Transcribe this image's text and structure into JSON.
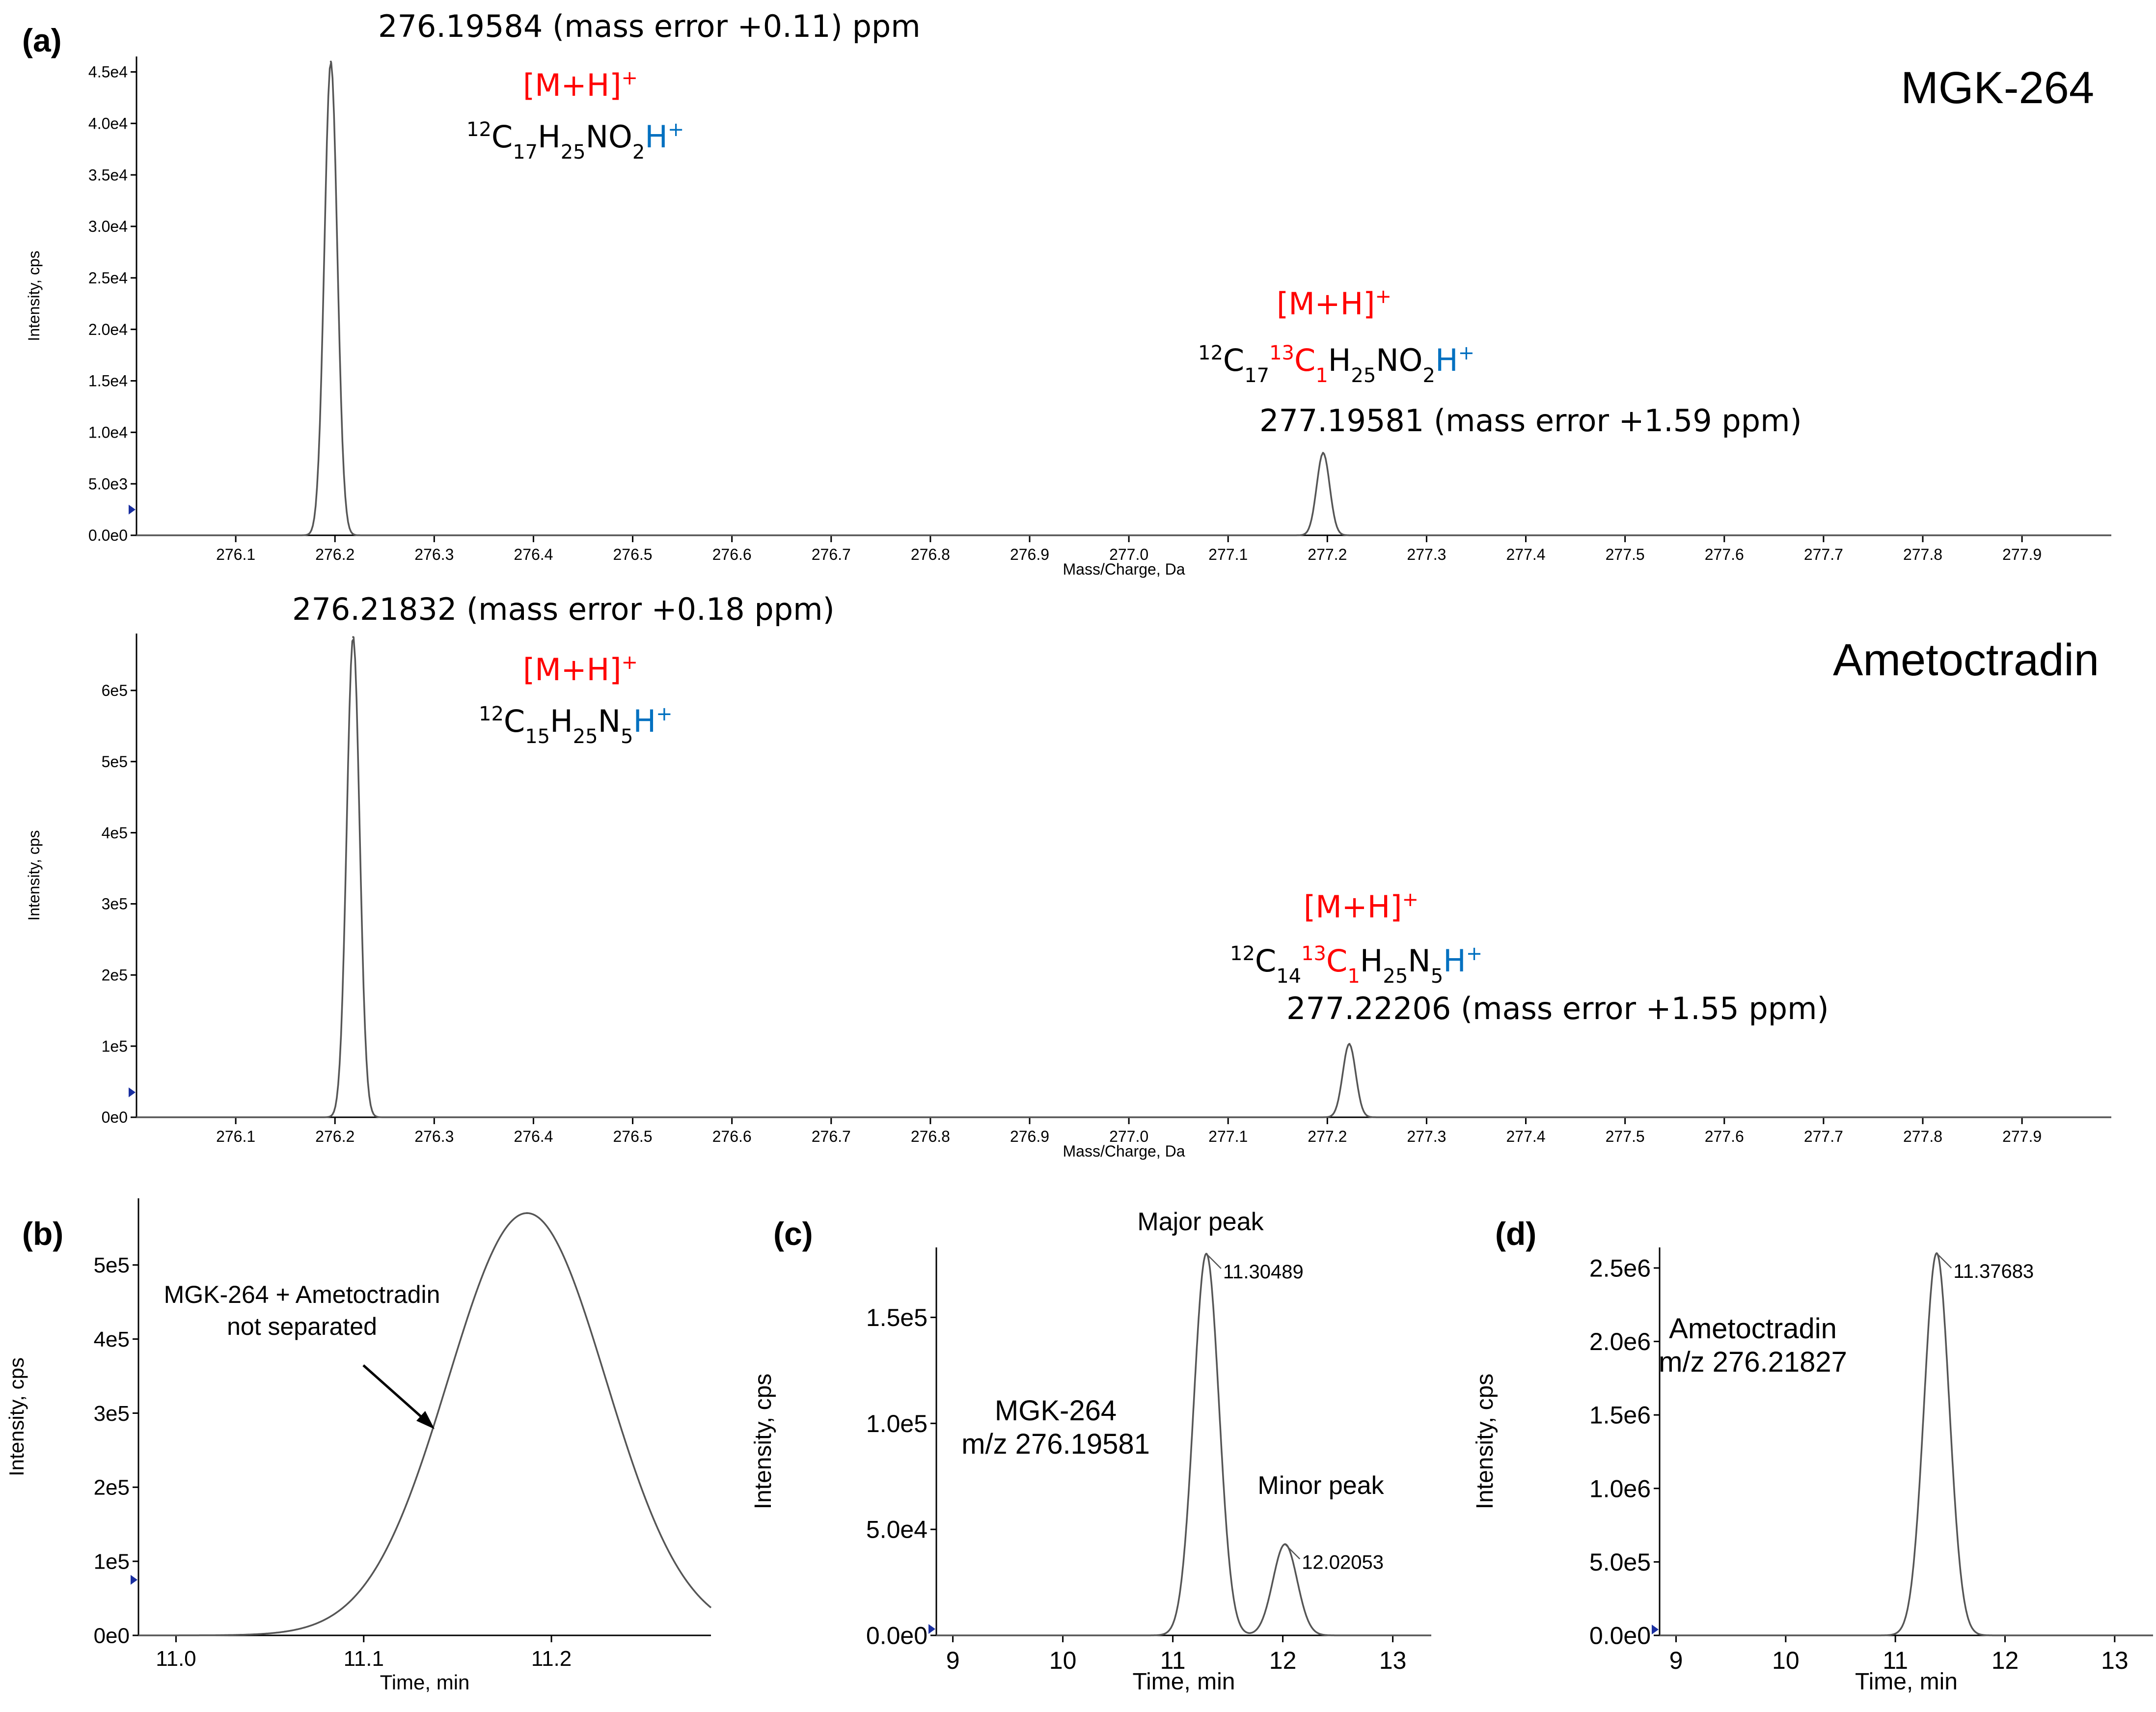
{
  "colors": {
    "line": "#555555",
    "axis": "#000000",
    "red": "#ff0000",
    "blue": "#0070c0",
    "marker": "#1a2fa0"
  },
  "panel_labels": {
    "a": "(a)",
    "b": "(b)",
    "c": "(c)",
    "d": "(d)"
  },
  "annotations": {
    "a1": {
      "compound": "MGK-264",
      "peak1_label": "276.19584 (mass error +0.11) ppm",
      "ion1": "[M+H]",
      "ion1_sup": "+",
      "formula1": {
        "iso_sup": "12",
        "c": "C",
        "c_sub": "17",
        "h": "H",
        "h_sub": "25",
        "rest": "NO",
        "rest_sub": "2",
        "hplus": "H",
        "hplus_sup": "+"
      },
      "peak2_label": "277.19581 (mass error +1.59 ppm)",
      "ion2": "[M+H]",
      "ion2_sup": "+",
      "formula2": {
        "iso_sup": "12",
        "c": "C",
        "c_sub": "17",
        "iso13_sup": "13",
        "c13": "C",
        "c13_sub": "1",
        "h": "H",
        "h_sub": "25",
        "rest": "NO",
        "rest_sub": "2",
        "hplus": "H",
        "hplus_sup": "+"
      }
    },
    "a2": {
      "compound": "Ametoctradin",
      "peak1_label": "276.21832 (mass error +0.18 ppm)",
      "ion1": "[M+H]",
      "ion1_sup": "+",
      "formula1": {
        "iso_sup": "12",
        "c": "C",
        "c_sub": "15",
        "h": "H",
        "h_sub": "25",
        "rest": "N",
        "rest_sub": "5",
        "hplus": "H",
        "hplus_sup": "+"
      },
      "peak2_label": "277.22206 (mass error +1.55 ppm)",
      "ion2": "[M+H]",
      "ion2_sup": "+",
      "formula2": {
        "iso_sup": "12",
        "c": "C",
        "c_sub": "14",
        "iso13_sup": "13",
        "c13": "C",
        "c13_sub": "1",
        "h": "H",
        "h_sub": "25",
        "rest": "N",
        "rest_sub": "5",
        "hplus": "H",
        "hplus_sup": "+"
      }
    },
    "b": {
      "note_line1": "MGK-264 + Ametoctradin",
      "note_line2": "not separated"
    },
    "c": {
      "major": "Major peak",
      "minor": "Minor peak",
      "compound": "MGK-264",
      "mz": "m/z 276.19581"
    },
    "d": {
      "compound": "Ametoctradin",
      "mz": "m/z 276.21827"
    }
  },
  "chart_data": [
    {
      "id": "a1",
      "type": "line",
      "xlabel": "Mass/Charge, Da",
      "ylabel": "Intensity, cps",
      "xlim": [
        276.0,
        277.99
      ],
      "ylim": [
        0,
        46500
      ],
      "xticks": [
        276.1,
        276.2,
        276.3,
        276.4,
        276.5,
        276.6,
        276.7,
        276.8,
        276.9,
        277.0,
        277.1,
        277.2,
        277.3,
        277.4,
        277.5,
        277.6,
        277.7,
        277.8,
        277.9
      ],
      "xtick_labels": [
        "276.1",
        "276.2",
        "276.3",
        "276.4",
        "276.5",
        "276.6",
        "276.7",
        "276.8",
        "276.9",
        "277.0",
        "277.1",
        "277.2",
        "277.3",
        "277.4",
        "277.5",
        "277.6",
        "277.7",
        "277.8",
        "277.9"
      ],
      "yticks": [
        0,
        5000,
        10000,
        15000,
        20000,
        25000,
        30000,
        35000,
        40000,
        45000
      ],
      "ytick_labels": [
        "0.0e0",
        "5.0e3",
        "1.0e4",
        "1.5e4",
        "2.0e4",
        "2.5e4",
        "3.0e4",
        "3.5e4",
        "4.0e4",
        "4.5e4"
      ],
      "peaks": [
        {
          "x": 276.19584,
          "y": 46000,
          "width": 0.0065
        },
        {
          "x": 277.19581,
          "y": 8000,
          "width": 0.0065
        }
      ],
      "marker_y": 2500
    },
    {
      "id": "a2",
      "type": "line",
      "xlabel": "Mass/Charge, Da",
      "ylabel": "Intensity, cps",
      "xlim": [
        276.0,
        277.99
      ],
      "ylim": [
        0,
        680000
      ],
      "xticks": [
        276.1,
        276.2,
        276.3,
        276.4,
        276.5,
        276.6,
        276.7,
        276.8,
        276.9,
        277.0,
        277.1,
        277.2,
        277.3,
        277.4,
        277.5,
        277.6,
        277.7,
        277.8,
        277.9
      ],
      "xtick_labels": [
        "276.1",
        "276.2",
        "276.3",
        "276.4",
        "276.5",
        "276.6",
        "276.7",
        "276.8",
        "276.9",
        "277.0",
        "277.1",
        "277.2",
        "277.3",
        "277.4",
        "277.5",
        "277.6",
        "277.7",
        "277.8",
        "277.9"
      ],
      "yticks": [
        0,
        100000,
        200000,
        300000,
        400000,
        500000,
        600000
      ],
      "ytick_labels": [
        "0e0",
        "1e5",
        "2e5",
        "3e5",
        "4e5",
        "5e5",
        "6e5"
      ],
      "peaks": [
        {
          "x": 276.21832,
          "y": 675000,
          "width": 0.0065
        },
        {
          "x": 277.22206,
          "y": 103000,
          "width": 0.0065
        }
      ],
      "marker_y": 35000
    },
    {
      "id": "b",
      "type": "line",
      "xlabel": "Time, min",
      "ylabel": "Intensity, cps",
      "xlim": [
        10.98,
        11.285
      ],
      "ylim": [
        0,
        590000
      ],
      "xticks": [
        11.0,
        11.1,
        11.2
      ],
      "xtick_labels": [
        "11.0",
        "11.1",
        "11.2"
      ],
      "yticks": [
        0,
        100000,
        200000,
        300000,
        400000,
        500000
      ],
      "ytick_labels": [
        "0e0",
        "1e5",
        "2e5",
        "3e5",
        "4e5",
        "5e5"
      ],
      "peaks": [
        {
          "x": 11.187,
          "y": 570000,
          "width": 0.042
        }
      ],
      "baseline_tail": {
        "x": 11.285,
        "y": 37000
      },
      "marker_y": 75000
    },
    {
      "id": "c",
      "type": "line",
      "xlabel": "Time, min",
      "ylabel": "Intensity, cps",
      "xlim": [
        8.85,
        13.35
      ],
      "ylim": [
        0,
        183000
      ],
      "xticks": [
        9,
        10,
        11,
        12,
        13
      ],
      "xtick_labels": [
        "9",
        "10",
        "11",
        "12",
        "13"
      ],
      "yticks": [
        0,
        50000,
        100000,
        150000
      ],
      "ytick_labels": [
        "0.0e0",
        "5.0e4",
        "1.0e5",
        "1.5e5"
      ],
      "peaks": [
        {
          "x": 11.30489,
          "y": 180000,
          "width": 0.115,
          "label": "11.30489"
        },
        {
          "x": 12.02053,
          "y": 43000,
          "width": 0.11,
          "label": "12.02053"
        }
      ],
      "marker_y": 3000
    },
    {
      "id": "d",
      "type": "line",
      "xlabel": "Time, min",
      "ylabel": "Intensity, cps",
      "xlim": [
        8.85,
        13.35
      ],
      "ylim": [
        0,
        2640000
      ],
      "xticks": [
        9,
        10,
        11,
        12,
        13
      ],
      "xtick_labels": [
        "9",
        "10",
        "11",
        "12",
        "13"
      ],
      "yticks": [
        0,
        500000,
        1000000,
        1500000,
        2000000,
        2500000
      ],
      "ytick_labels": [
        "0.0e0",
        "5.0e5",
        "1.0e6",
        "1.5e6",
        "2.0e6",
        "2.5e6"
      ],
      "peaks": [
        {
          "x": 11.37683,
          "y": 2600000,
          "width": 0.115,
          "label": "11.37683"
        }
      ],
      "marker_y": 40000
    }
  ]
}
